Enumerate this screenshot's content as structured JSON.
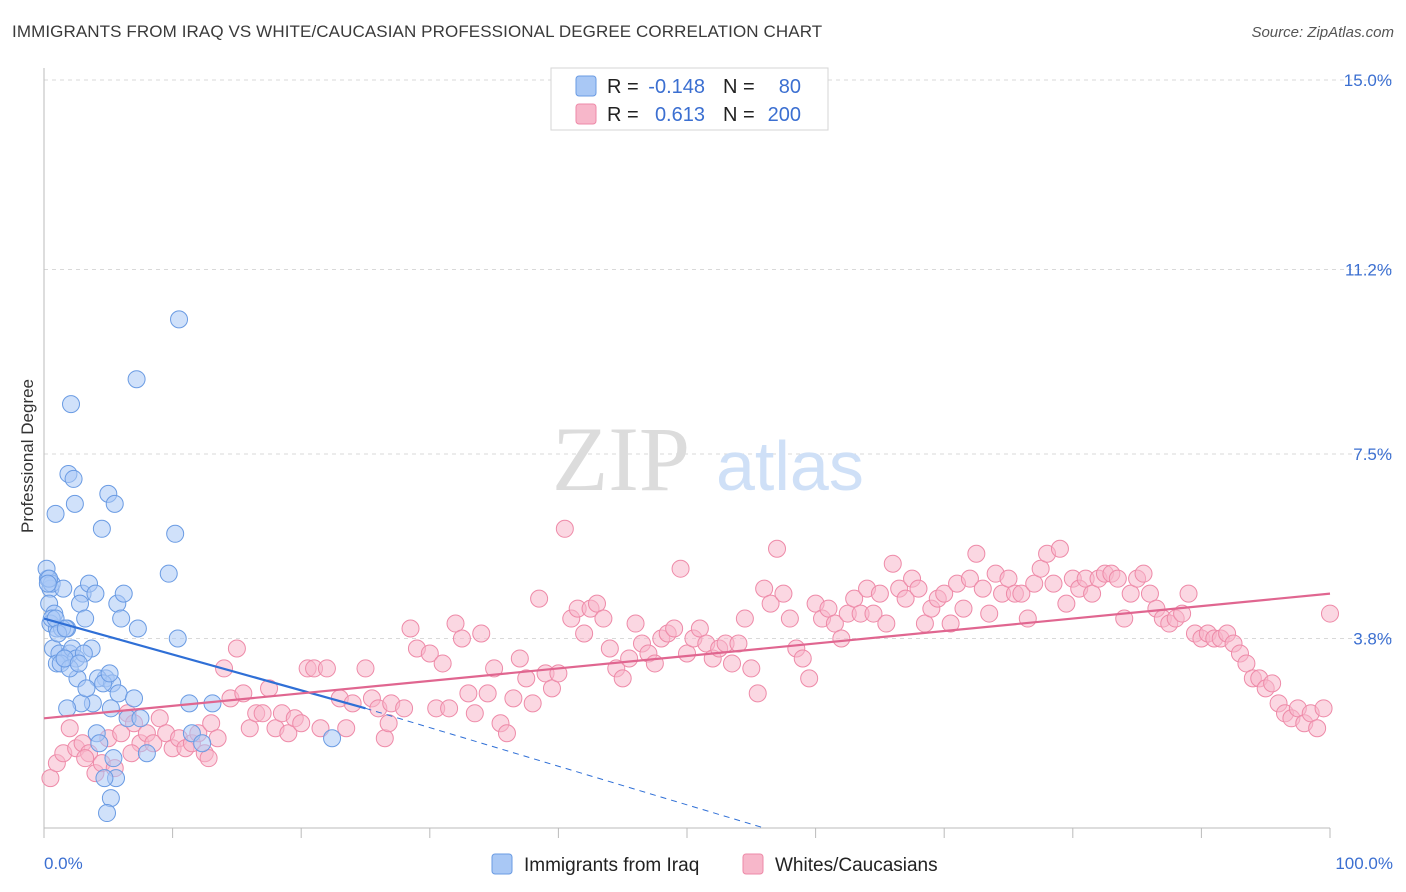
{
  "title": "IMMIGRANTS FROM IRAQ VS WHITE/CAUCASIAN PROFESSIONAL DEGREE CORRELATION CHART",
  "source": "Source: ZipAtlas.com",
  "watermark": {
    "zip": "ZIP",
    "atlas": "atlas"
  },
  "legend_top": {
    "rows": [
      {
        "r_label": "R =",
        "r_value": "-0.148",
        "n_label": "N =",
        "n_value": "80",
        "color": "#a9c8f5"
      },
      {
        "r_label": "R =",
        "r_value": "0.613",
        "n_label": "N =",
        "n_value": "200",
        "color": "#f7b7ca"
      }
    ]
  },
  "chart_data": {
    "type": "scatter",
    "xlabel": "",
    "ylabel": "Professional Degree",
    "xlim": [
      0,
      100
    ],
    "ylim": [
      0,
      15
    ],
    "y_ticks": [
      3.8,
      7.5,
      11.2,
      15.0
    ],
    "y_tick_labels": [
      "3.8%",
      "7.5%",
      "11.2%",
      "15.0%"
    ],
    "x_tick_labels": [
      "0.0%",
      "100.0%"
    ],
    "grid": true,
    "legend_placement": "bottom-center",
    "series": [
      {
        "name": "Immigrants from Iraq",
        "color": "#a9c8f5",
        "edge_color": "#6a9be3",
        "trend": {
          "x0": 0,
          "y0": 4.2,
          "x1": 25,
          "y1": 2.4,
          "dash_x1": 56,
          "dash_y1": 0
        },
        "points": [
          [
            0.3,
            5.0
          ],
          [
            0.5,
            4.8
          ],
          [
            0.4,
            4.5
          ],
          [
            0.6,
            4.9
          ],
          [
            0.8,
            4.3
          ],
          [
            0.5,
            4.1
          ],
          [
            1.0,
            4.0
          ],
          [
            0.7,
            3.6
          ],
          [
            1.2,
            3.5
          ],
          [
            0.9,
            6.3
          ],
          [
            1.5,
            4.8
          ],
          [
            1.8,
            4.0
          ],
          [
            2.0,
            3.5
          ],
          [
            1.6,
            3.4
          ],
          [
            2.2,
            3.6
          ],
          [
            2.5,
            3.4
          ],
          [
            1.4,
            4.0
          ],
          [
            1.9,
            7.1
          ],
          [
            2.3,
            7.0
          ],
          [
            2.1,
            8.5
          ],
          [
            2.4,
            6.5
          ],
          [
            3.0,
            4.7
          ],
          [
            3.5,
            4.9
          ],
          [
            2.8,
            4.5
          ],
          [
            3.2,
            4.2
          ],
          [
            3.7,
            3.6
          ],
          [
            3.1,
            3.5
          ],
          [
            4.0,
            4.7
          ],
          [
            4.5,
            6.0
          ],
          [
            5.0,
            6.7
          ],
          [
            5.5,
            6.5
          ],
          [
            5.7,
            4.5
          ],
          [
            6.0,
            4.2
          ],
          [
            6.2,
            4.7
          ],
          [
            4.8,
            3.0
          ],
          [
            4.2,
            3.0
          ],
          [
            3.8,
            2.5
          ],
          [
            2.6,
            3.0
          ],
          [
            2.9,
            2.5
          ],
          [
            1.8,
            2.4
          ],
          [
            4.1,
            1.9
          ],
          [
            4.3,
            1.7
          ],
          [
            5.3,
            2.9
          ],
          [
            5.8,
            2.7
          ],
          [
            6.5,
            2.2
          ],
          [
            5.2,
            2.4
          ],
          [
            4.6,
            2.9
          ],
          [
            5.1,
            3.1
          ],
          [
            5.4,
            1.4
          ],
          [
            5.6,
            1.0
          ],
          [
            5.2,
            0.6
          ],
          [
            4.9,
            0.3
          ],
          [
            4.7,
            1.0
          ],
          [
            7.2,
            9.0
          ],
          [
            8.0,
            1.5
          ],
          [
            7.5,
            2.2
          ],
          [
            7.0,
            2.6
          ],
          [
            7.3,
            4.0
          ],
          [
            9.7,
            5.1
          ],
          [
            10.2,
            5.9
          ],
          [
            10.5,
            10.2
          ],
          [
            10.4,
            3.8
          ],
          [
            11.3,
            2.5
          ],
          [
            11.5,
            1.9
          ],
          [
            12.3,
            1.7
          ],
          [
            13.1,
            2.5
          ],
          [
            1.0,
            3.3
          ],
          [
            1.3,
            3.3
          ],
          [
            0.2,
            5.2
          ],
          [
            0.6,
            4.2
          ],
          [
            0.9,
            4.2
          ],
          [
            1.1,
            3.9
          ],
          [
            2.0,
            3.2
          ],
          [
            1.6,
            3.4
          ],
          [
            2.7,
            3.3
          ],
          [
            3.3,
            2.8
          ],
          [
            0.4,
            5.0
          ],
          [
            0.3,
            4.9
          ],
          [
            22.4,
            1.8
          ],
          [
            1.7,
            4.0
          ]
        ]
      },
      {
        "name": "Whites/Caucasians",
        "color": "#f7b7ca",
        "edge_color": "#ee8aa8",
        "trend": {
          "x0": 0,
          "y0": 2.2,
          "x1": 100,
          "y1": 4.7
        },
        "points": [
          [
            0.5,
            1.0
          ],
          [
            1.0,
            1.3
          ],
          [
            1.5,
            1.5
          ],
          [
            2.0,
            2.0
          ],
          [
            2.5,
            1.6
          ],
          [
            3.0,
            1.7
          ],
          [
            3.5,
            1.5
          ],
          [
            4.0,
            1.1
          ],
          [
            4.5,
            1.3
          ],
          [
            5.0,
            1.8
          ],
          [
            5.5,
            1.2
          ],
          [
            6.0,
            1.9
          ],
          [
            6.5,
            2.3
          ],
          [
            7.0,
            2.1
          ],
          [
            7.5,
            1.7
          ],
          [
            8.0,
            1.9
          ],
          [
            8.5,
            1.7
          ],
          [
            9.0,
            2.2
          ],
          [
            9.5,
            1.9
          ],
          [
            10.0,
            1.6
          ],
          [
            10.5,
            1.8
          ],
          [
            11.0,
            1.6
          ],
          [
            11.5,
            1.7
          ],
          [
            12.0,
            1.9
          ],
          [
            12.5,
            1.5
          ],
          [
            13.0,
            2.1
          ],
          [
            13.5,
            1.8
          ],
          [
            14.0,
            3.2
          ],
          [
            14.5,
            2.6
          ],
          [
            15.0,
            3.6
          ],
          [
            15.5,
            2.7
          ],
          [
            16.0,
            2.0
          ],
          [
            16.5,
            2.3
          ],
          [
            17.0,
            2.3
          ],
          [
            17.5,
            2.8
          ],
          [
            18.0,
            2.0
          ],
          [
            18.5,
            2.3
          ],
          [
            19.0,
            1.9
          ],
          [
            19.5,
            2.2
          ],
          [
            20.0,
            2.1
          ],
          [
            20.5,
            3.2
          ],
          [
            21.0,
            3.2
          ],
          [
            21.5,
            2.0
          ],
          [
            22.0,
            3.2
          ],
          [
            23.0,
            2.6
          ],
          [
            23.5,
            2.0
          ],
          [
            24.0,
            2.5
          ],
          [
            25.0,
            3.2
          ],
          [
            25.5,
            2.6
          ],
          [
            26.0,
            2.4
          ],
          [
            26.5,
            1.8
          ],
          [
            27.0,
            2.5
          ],
          [
            28.0,
            2.4
          ],
          [
            28.5,
            4.0
          ],
          [
            29.0,
            3.6
          ],
          [
            30.0,
            3.5
          ],
          [
            30.5,
            2.4
          ],
          [
            31.0,
            3.3
          ],
          [
            31.5,
            2.4
          ],
          [
            32.0,
            4.1
          ],
          [
            32.5,
            3.8
          ],
          [
            33.0,
            2.7
          ],
          [
            33.5,
            2.3
          ],
          [
            34.0,
            3.9
          ],
          [
            34.5,
            2.7
          ],
          [
            35.0,
            3.2
          ],
          [
            35.5,
            2.1
          ],
          [
            36.0,
            1.9
          ],
          [
            36.5,
            2.6
          ],
          [
            37.0,
            3.4
          ],
          [
            37.5,
            3.0
          ],
          [
            38.0,
            2.5
          ],
          [
            38.5,
            4.6
          ],
          [
            39.0,
            3.1
          ],
          [
            39.5,
            2.8
          ],
          [
            40.0,
            3.1
          ],
          [
            40.5,
            6.0
          ],
          [
            41.0,
            4.2
          ],
          [
            41.5,
            4.4
          ],
          [
            42.0,
            3.9
          ],
          [
            42.5,
            4.4
          ],
          [
            43.0,
            4.5
          ],
          [
            43.5,
            4.2
          ],
          [
            44.0,
            3.6
          ],
          [
            44.5,
            3.2
          ],
          [
            45.0,
            3.0
          ],
          [
            45.5,
            3.4
          ],
          [
            46.0,
            4.1
          ],
          [
            46.5,
            3.7
          ],
          [
            47.0,
            3.5
          ],
          [
            47.5,
            3.3
          ],
          [
            48.0,
            3.8
          ],
          [
            48.5,
            3.9
          ],
          [
            49.0,
            4.0
          ],
          [
            49.5,
            5.2
          ],
          [
            50.0,
            3.5
          ],
          [
            50.5,
            3.8
          ],
          [
            51.0,
            4.0
          ],
          [
            51.5,
            3.7
          ],
          [
            52.0,
            3.4
          ],
          [
            52.5,
            3.6
          ],
          [
            53.0,
            3.7
          ],
          [
            53.5,
            3.3
          ],
          [
            54.0,
            3.7
          ],
          [
            54.5,
            4.2
          ],
          [
            55.0,
            3.2
          ],
          [
            55.5,
            2.7
          ],
          [
            56.0,
            4.8
          ],
          [
            56.5,
            4.5
          ],
          [
            57.0,
            5.6
          ],
          [
            57.5,
            4.7
          ],
          [
            58.0,
            4.2
          ],
          [
            58.5,
            3.6
          ],
          [
            59.0,
            3.4
          ],
          [
            59.5,
            3.0
          ],
          [
            60.0,
            4.5
          ],
          [
            60.5,
            4.2
          ],
          [
            61.0,
            4.4
          ],
          [
            61.5,
            4.1
          ],
          [
            62.0,
            3.8
          ],
          [
            62.5,
            4.3
          ],
          [
            63.0,
            4.6
          ],
          [
            63.5,
            4.3
          ],
          [
            64.0,
            4.8
          ],
          [
            64.5,
            4.3
          ],
          [
            65.0,
            4.7
          ],
          [
            65.5,
            4.1
          ],
          [
            66.0,
            5.3
          ],
          [
            66.5,
            4.8
          ],
          [
            67.0,
            4.6
          ],
          [
            67.5,
            5.0
          ],
          [
            68.0,
            4.8
          ],
          [
            68.5,
            4.1
          ],
          [
            69.0,
            4.4
          ],
          [
            69.5,
            4.6
          ],
          [
            70.0,
            4.7
          ],
          [
            70.5,
            4.1
          ],
          [
            71.0,
            4.9
          ],
          [
            71.5,
            4.4
          ],
          [
            72.0,
            5.0
          ],
          [
            72.5,
            5.5
          ],
          [
            73.0,
            4.8
          ],
          [
            73.5,
            4.3
          ],
          [
            74.0,
            5.1
          ],
          [
            74.5,
            4.7
          ],
          [
            75.0,
            5.0
          ],
          [
            75.5,
            4.7
          ],
          [
            76.0,
            4.7
          ],
          [
            76.5,
            4.2
          ],
          [
            77.0,
            4.9
          ],
          [
            77.5,
            5.2
          ],
          [
            78.0,
            5.5
          ],
          [
            78.5,
            4.9
          ],
          [
            79.0,
            5.6
          ],
          [
            79.5,
            4.5
          ],
          [
            80.0,
            5.0
          ],
          [
            80.5,
            4.8
          ],
          [
            81.0,
            5.0
          ],
          [
            81.5,
            4.7
          ],
          [
            82.0,
            5.0
          ],
          [
            82.5,
            5.1
          ],
          [
            83.0,
            5.1
          ],
          [
            83.5,
            5.0
          ],
          [
            84.0,
            4.2
          ],
          [
            84.5,
            4.7
          ],
          [
            85.0,
            5.0
          ],
          [
            85.5,
            5.1
          ],
          [
            86.0,
            4.7
          ],
          [
            86.5,
            4.4
          ],
          [
            87.0,
            4.2
          ],
          [
            87.5,
            4.1
          ],
          [
            88.0,
            4.2
          ],
          [
            88.5,
            4.3
          ],
          [
            89.0,
            4.7
          ],
          [
            89.5,
            3.9
          ],
          [
            90.0,
            3.8
          ],
          [
            90.5,
            3.9
          ],
          [
            91.0,
            3.8
          ],
          [
            91.5,
            3.8
          ],
          [
            92.0,
            3.9
          ],
          [
            92.5,
            3.7
          ],
          [
            93.0,
            3.5
          ],
          [
            93.5,
            3.3
          ],
          [
            94.0,
            3.0
          ],
          [
            94.5,
            3.0
          ],
          [
            95.0,
            2.8
          ],
          [
            95.5,
            2.9
          ],
          [
            96.0,
            2.5
          ],
          [
            96.5,
            2.3
          ],
          [
            97.0,
            2.2
          ],
          [
            97.5,
            2.4
          ],
          [
            98.0,
            2.1
          ],
          [
            98.5,
            2.3
          ],
          [
            99.0,
            2.0
          ],
          [
            99.5,
            2.4
          ],
          [
            100.0,
            4.3
          ],
          [
            3.2,
            1.4
          ],
          [
            6.8,
            1.5
          ],
          [
            12.8,
            1.4
          ],
          [
            26.8,
            2.1
          ]
        ]
      }
    ]
  },
  "legend_bottom": [
    {
      "label": "Immigrants from Iraq",
      "color": "#a9c8f5"
    },
    {
      "label": "Whites/Caucasians",
      "color": "#f7b7ca"
    }
  ]
}
